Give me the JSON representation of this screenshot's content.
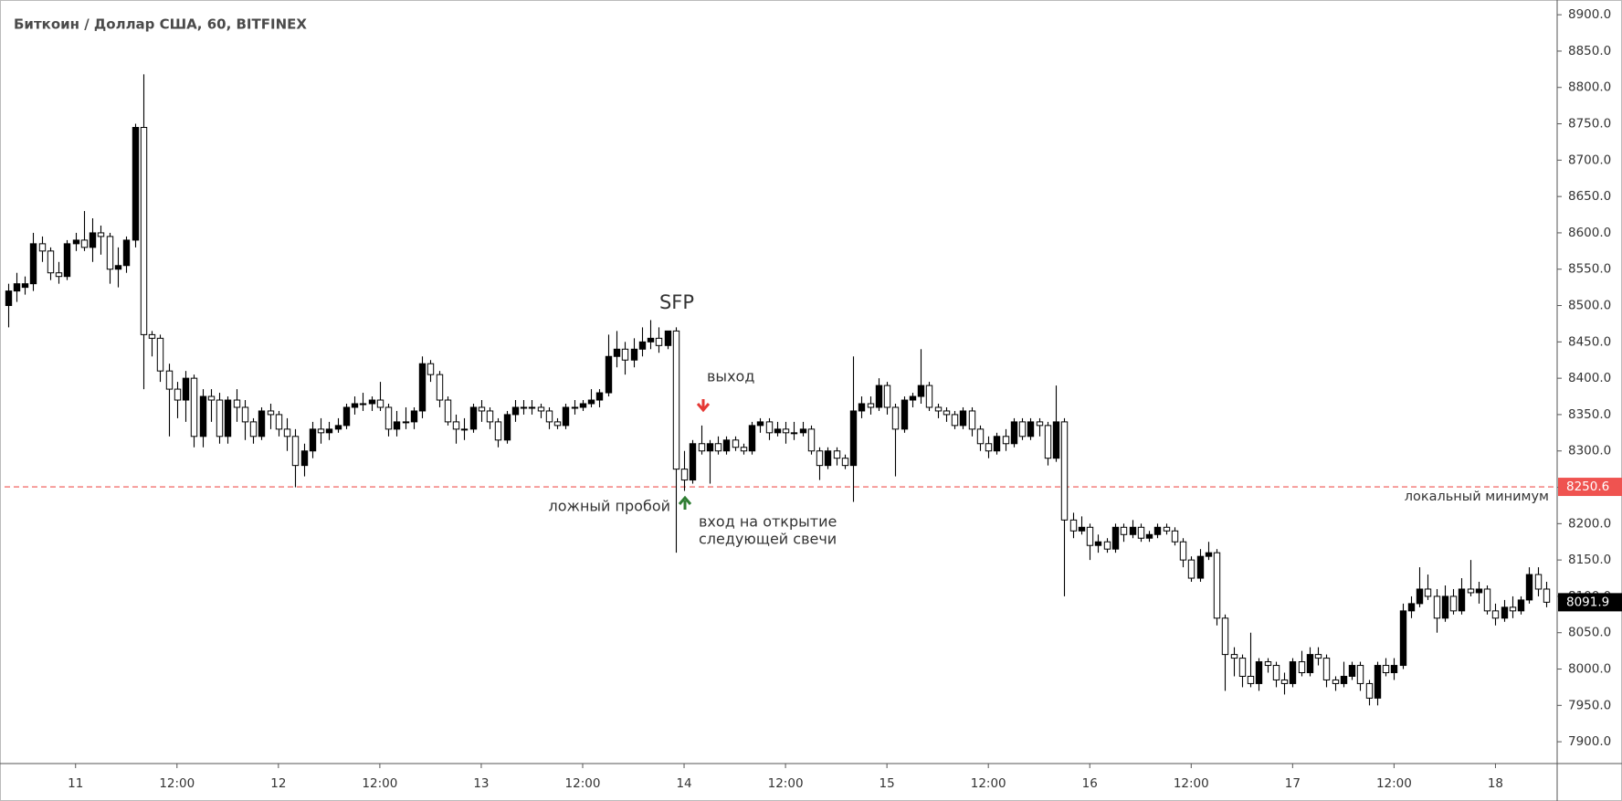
{
  "chart_data": {
    "type": "candlestick",
    "title": "Биткоин / Доллар США, 60, BITFINEX",
    "ohlc": [
      [
        8500,
        8530,
        8470,
        8520
      ],
      [
        8520,
        8545,
        8505,
        8530
      ],
      [
        8525,
        8540,
        8515,
        8530
      ],
      [
        8530,
        8600,
        8520,
        8585
      ],
      [
        8585,
        8595,
        8560,
        8575
      ],
      [
        8575,
        8580,
        8535,
        8545
      ],
      [
        8545,
        8560,
        8530,
        8540
      ],
      [
        8540,
        8590,
        8535,
        8585
      ],
      [
        8585,
        8600,
        8575,
        8590
      ],
      [
        8590,
        8630,
        8575,
        8580
      ],
      [
        8580,
        8620,
        8560,
        8600
      ],
      [
        8600,
        8610,
        8570,
        8595
      ],
      [
        8595,
        8600,
        8530,
        8550
      ],
      [
        8550,
        8580,
        8525,
        8555
      ],
      [
        8555,
        8595,
        8545,
        8590
      ],
      [
        8590,
        8750,
        8580,
        8745
      ],
      [
        8745,
        8818,
        8385,
        8460
      ],
      [
        8460,
        8465,
        8430,
        8455
      ],
      [
        8455,
        8460,
        8395,
        8410
      ],
      [
        8410,
        8420,
        8320,
        8385
      ],
      [
        8385,
        8395,
        8345,
        8370
      ],
      [
        8370,
        8410,
        8340,
        8400
      ],
      [
        8400,
        8405,
        8305,
        8320
      ],
      [
        8320,
        8385,
        8305,
        8375
      ],
      [
        8375,
        8385,
        8340,
        8370
      ],
      [
        8370,
        8380,
        8310,
        8320
      ],
      [
        8320,
        8375,
        8310,
        8370
      ],
      [
        8370,
        8385,
        8340,
        8360
      ],
      [
        8360,
        8370,
        8315,
        8340
      ],
      [
        8340,
        8345,
        8310,
        8320
      ],
      [
        8320,
        8360,
        8315,
        8355
      ],
      [
        8355,
        8365,
        8330,
        8350
      ],
      [
        8350,
        8355,
        8320,
        8330
      ],
      [
        8330,
        8345,
        8300,
        8320
      ],
      [
        8320,
        8330,
        8250,
        8280
      ],
      [
        8280,
        8310,
        8265,
        8300
      ],
      [
        8300,
        8340,
        8290,
        8330
      ],
      [
        8330,
        8345,
        8310,
        8325
      ],
      [
        8325,
        8340,
        8315,
        8330
      ],
      [
        8330,
        8345,
        8325,
        8335
      ],
      [
        8335,
        8365,
        8330,
        8360
      ],
      [
        8360,
        8375,
        8350,
        8365
      ],
      [
        8365,
        8380,
        8355,
        8365
      ],
      [
        8365,
        8375,
        8355,
        8370
      ],
      [
        8370,
        8395,
        8355,
        8360
      ],
      [
        8360,
        8365,
        8320,
        8330
      ],
      [
        8330,
        8355,
        8320,
        8340
      ],
      [
        8340,
        8360,
        8330,
        8340
      ],
      [
        8340,
        8360,
        8330,
        8355
      ],
      [
        8355,
        8430,
        8345,
        8420
      ],
      [
        8420,
        8425,
        8395,
        8405
      ],
      [
        8405,
        8410,
        8360,
        8370
      ],
      [
        8370,
        8375,
        8335,
        8340
      ],
      [
        8340,
        8350,
        8310,
        8330
      ],
      [
        8330,
        8345,
        8315,
        8330
      ],
      [
        8330,
        8365,
        8325,
        8360
      ],
      [
        8360,
        8370,
        8340,
        8355
      ],
      [
        8355,
        8360,
        8330,
        8340
      ],
      [
        8340,
        8345,
        8305,
        8315
      ],
      [
        8315,
        8355,
        8310,
        8350
      ],
      [
        8350,
        8370,
        8340,
        8360
      ],
      [
        8360,
        8370,
        8350,
        8360
      ],
      [
        8360,
        8370,
        8350,
        8360
      ],
      [
        8360,
        8365,
        8345,
        8355
      ],
      [
        8355,
        8360,
        8330,
        8340
      ],
      [
        8340,
        8345,
        8330,
        8335
      ],
      [
        8335,
        8365,
        8330,
        8360
      ],
      [
        8360,
        8370,
        8350,
        8360
      ],
      [
        8360,
        8370,
        8355,
        8365
      ],
      [
        8365,
        8385,
        8360,
        8370
      ],
      [
        8370,
        8385,
        8360,
        8380
      ],
      [
        8380,
        8460,
        8375,
        8430
      ],
      [
        8430,
        8465,
        8415,
        8440
      ],
      [
        8440,
        8450,
        8405,
        8425
      ],
      [
        8425,
        8455,
        8415,
        8440
      ],
      [
        8440,
        8470,
        8430,
        8450
      ],
      [
        8450,
        8480,
        8440,
        8455
      ],
      [
        8455,
        8470,
        8435,
        8445
      ],
      [
        8445,
        8465,
        8440,
        8465
      ],
      [
        8465,
        8470,
        8160,
        8275
      ],
      [
        8275,
        8300,
        8245,
        8260
      ],
      [
        8260,
        8315,
        8255,
        8310
      ],
      [
        8310,
        8335,
        8295,
        8300
      ],
      [
        8300,
        8315,
        8255,
        8310
      ],
      [
        8310,
        8320,
        8295,
        8300
      ],
      [
        8300,
        8320,
        8295,
        8315
      ],
      [
        8315,
        8320,
        8300,
        8305
      ],
      [
        8305,
        8310,
        8295,
        8300
      ],
      [
        8300,
        8340,
        8295,
        8335
      ],
      [
        8335,
        8345,
        8325,
        8340
      ],
      [
        8340,
        8345,
        8315,
        8325
      ],
      [
        8325,
        8340,
        8320,
        8330
      ],
      [
        8330,
        8340,
        8310,
        8325
      ],
      [
        8325,
        8340,
        8315,
        8325
      ],
      [
        8325,
        8340,
        8320,
        8330
      ],
      [
        8330,
        8335,
        8295,
        8300
      ],
      [
        8300,
        8305,
        8260,
        8280
      ],
      [
        8280,
        8305,
        8275,
        8300
      ],
      [
        8300,
        8305,
        8280,
        8290
      ],
      [
        8290,
        8295,
        8275,
        8280
      ],
      [
        8280,
        8430,
        8230,
        8355
      ],
      [
        8355,
        8375,
        8345,
        8365
      ],
      [
        8365,
        8375,
        8350,
        8360
      ],
      [
        8360,
        8400,
        8355,
        8390
      ],
      [
        8390,
        8395,
        8350,
        8360
      ],
      [
        8360,
        8365,
        8265,
        8330
      ],
      [
        8330,
        8375,
        8325,
        8370
      ],
      [
        8370,
        8380,
        8360,
        8375
      ],
      [
        8375,
        8440,
        8365,
        8390
      ],
      [
        8390,
        8395,
        8355,
        8360
      ],
      [
        8360,
        8365,
        8345,
        8355
      ],
      [
        8355,
        8360,
        8340,
        8350
      ],
      [
        8350,
        8355,
        8330,
        8335
      ],
      [
        8335,
        8360,
        8330,
        8355
      ],
      [
        8355,
        8360,
        8320,
        8330
      ],
      [
        8330,
        8335,
        8300,
        8310
      ],
      [
        8310,
        8320,
        8290,
        8300
      ],
      [
        8300,
        8325,
        8295,
        8320
      ],
      [
        8320,
        8330,
        8300,
        8310
      ],
      [
        8310,
        8345,
        8305,
        8340
      ],
      [
        8340,
        8345,
        8315,
        8320
      ],
      [
        8320,
        8345,
        8315,
        8340
      ],
      [
        8340,
        8345,
        8320,
        8335
      ],
      [
        8335,
        8340,
        8280,
        8290
      ],
      [
        8290,
        8390,
        8285,
        8340
      ],
      [
        8340,
        8345,
        8100,
        8205
      ],
      [
        8205,
        8215,
        8180,
        8190
      ],
      [
        8190,
        8210,
        8185,
        8195
      ],
      [
        8195,
        8200,
        8150,
        8170
      ],
      [
        8170,
        8185,
        8160,
        8175
      ],
      [
        8175,
        8180,
        8160,
        8165
      ],
      [
        8165,
        8200,
        8160,
        8195
      ],
      [
        8195,
        8200,
        8175,
        8185
      ],
      [
        8185,
        8205,
        8180,
        8195
      ],
      [
        8195,
        8200,
        8175,
        8180
      ],
      [
        8180,
        8190,
        8175,
        8185
      ],
      [
        8185,
        8200,
        8180,
        8195
      ],
      [
        8195,
        8200,
        8185,
        8190
      ],
      [
        8190,
        8195,
        8170,
        8175
      ],
      [
        8175,
        8180,
        8140,
        8150
      ],
      [
        8150,
        8155,
        8120,
        8125
      ],
      [
        8125,
        8165,
        8120,
        8155
      ],
      [
        8155,
        8175,
        8150,
        8160
      ],
      [
        8160,
        8165,
        8060,
        8070
      ],
      [
        8070,
        8075,
        7970,
        8020
      ],
      [
        8020,
        8030,
        7990,
        8015
      ],
      [
        8015,
        8020,
        7975,
        7990
      ],
      [
        7990,
        8050,
        7975,
        7980
      ],
      [
        7980,
        8015,
        7970,
        8010
      ],
      [
        8010,
        8015,
        7995,
        8005
      ],
      [
        8005,
        8010,
        7975,
        7985
      ],
      [
        7985,
        7995,
        7965,
        7980
      ],
      [
        7980,
        8015,
        7975,
        8010
      ],
      [
        8010,
        8025,
        7990,
        7995
      ],
      [
        7995,
        8030,
        7990,
        8020
      ],
      [
        8020,
        8030,
        8005,
        8015
      ],
      [
        8015,
        8020,
        7975,
        7985
      ],
      [
        7985,
        7990,
        7970,
        7980
      ],
      [
        7980,
        8010,
        7975,
        7990
      ],
      [
        7990,
        8010,
        7985,
        8005
      ],
      [
        8005,
        8010,
        7970,
        7980
      ],
      [
        7980,
        7985,
        7950,
        7960
      ],
      [
        7960,
        8010,
        7950,
        8005
      ],
      [
        8005,
        8015,
        7990,
        7995
      ],
      [
        7995,
        8015,
        7985,
        8005
      ],
      [
        8005,
        8090,
        8000,
        8080
      ],
      [
        8080,
        8100,
        8070,
        8090
      ],
      [
        8090,
        8140,
        8085,
        8110
      ],
      [
        8110,
        8130,
        8095,
        8100
      ],
      [
        8100,
        8110,
        8050,
        8070
      ],
      [
        8070,
        8115,
        8065,
        8100
      ],
      [
        8100,
        8110,
        8075,
        8080
      ],
      [
        8080,
        8125,
        8075,
        8110
      ],
      [
        8110,
        8150,
        8100,
        8105
      ],
      [
        8105,
        8120,
        8090,
        8110
      ],
      [
        8110,
        8115,
        8075,
        8080
      ],
      [
        8080,
        8090,
        8060,
        8070
      ],
      [
        8070,
        8095,
        8065,
        8085
      ],
      [
        8085,
        8100,
        8070,
        8080
      ],
      [
        8080,
        8100,
        8075,
        8095
      ],
      [
        8095,
        8140,
        8090,
        8130
      ],
      [
        8130,
        8140,
        8100,
        8110
      ],
      [
        8110,
        8120,
        8085,
        8091.9
      ]
    ],
    "up_color": "#000000",
    "down_color": "#ffffff",
    "ylim": [
      7870,
      8914
    ],
    "yticks": [
      {
        "value": 7900,
        "label": "7900.0"
      },
      {
        "value": 7950,
        "label": "7950.0"
      },
      {
        "value": 8000,
        "label": "8000.0"
      },
      {
        "value": 8050,
        "label": "8050.0"
      },
      {
        "value": 8100,
        "label": "8100.0"
      },
      {
        "value": 8150,
        "label": "8150.0"
      },
      {
        "value": 8200,
        "label": "8200.0"
      },
      {
        "value": 8250,
        "label": "8250.0"
      },
      {
        "value": 8300,
        "label": "8300.0"
      },
      {
        "value": 8350,
        "label": "8350.0"
      },
      {
        "value": 8400,
        "label": "8400.0"
      },
      {
        "value": 8450,
        "label": "8450.0"
      },
      {
        "value": 8500,
        "label": "8500.0"
      },
      {
        "value": 8550,
        "label": "8550.0"
      },
      {
        "value": 8600,
        "label": "8600.0"
      },
      {
        "value": 8650,
        "label": "8650.0"
      },
      {
        "value": 8700,
        "label": "8700.0"
      },
      {
        "value": 8750,
        "label": "8750.0"
      },
      {
        "value": 8800,
        "label": "8800.0"
      },
      {
        "value": 8850,
        "label": "8850.0"
      },
      {
        "value": 8900,
        "label": "8900.0"
      }
    ],
    "xlim": [
      -0.4,
      183.3
    ],
    "xticks": [
      {
        "value": 8,
        "label": "11"
      },
      {
        "value": 20,
        "label": "12:00"
      },
      {
        "value": 32,
        "label": "12"
      },
      {
        "value": 44,
        "label": "12:00"
      },
      {
        "value": 56,
        "label": "13"
      },
      {
        "value": 68,
        "label": "12:00"
      },
      {
        "value": 80,
        "label": "14"
      },
      {
        "value": 92,
        "label": "12:00"
      },
      {
        "value": 104,
        "label": "15"
      },
      {
        "value": 116,
        "label": "12:00"
      },
      {
        "value": 128,
        "label": "16"
      },
      {
        "value": 140,
        "label": "12:00"
      },
      {
        "value": 152,
        "label": "17"
      },
      {
        "value": 164,
        "label": "12:00"
      },
      {
        "value": 176,
        "label": "18"
      }
    ],
    "level": 8250.6,
    "level_color": "#ef5350",
    "annotations": {
      "sfp": "SFP",
      "exit": "выход",
      "false_break": "ложный пробой",
      "entry": [
        "вход на открытие",
        "следующей свечи"
      ],
      "local_min": "локальный минимум"
    }
  }
}
